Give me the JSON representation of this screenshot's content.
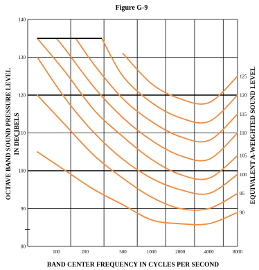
{
  "chart_data": {
    "type": "line",
    "title": "Figure G-9",
    "xlabel": "BAND CENTER FREQUENCY IN CYCLES PER SECOND",
    "ylabel": "OCTAVE BAND SOUND PRESSURE LEVEL IN DECIBELS",
    "y2label": "EQUIVALENT A-WEIGHTED SOUND LEVEL",
    "x_ticks": [
      100,
      200,
      500,
      1000,
      2000,
      4000,
      8000
    ],
    "x_tick_labels": [
      "100",
      "200",
      "500",
      "1000",
      "2000",
      "4000",
      "8000"
    ],
    "x_scale": "log",
    "xlim": [
      50,
      8000
    ],
    "ylim": [
      80,
      140
    ],
    "y_ticks": [
      80,
      90,
      100,
      110,
      120,
      130,
      140
    ],
    "y_tick_labels": [
      "80",
      "90",
      "100",
      "110",
      "120",
      "130",
      "140"
    ],
    "grid": true,
    "cap_level": 135,
    "cap_start": 63,
    "colors": {
      "curve": "#f58a3c",
      "grid": "#000000"
    },
    "series": [
      {
        "name": "90",
        "dba": 90,
        "x": [
          63,
          125,
          250,
          500,
          1000,
          2000,
          4000,
          8000
        ],
        "y": [
          105,
          100,
          95,
          91,
          87,
          86,
          86,
          89
        ]
      },
      {
        "name": "95",
        "dba": 95,
        "x": [
          63,
          125,
          250,
          500,
          1000,
          2000,
          4000,
          8000
        ],
        "y": [
          120,
          112,
          104,
          98,
          93,
          90,
          90,
          94
        ]
      },
      {
        "name": "100",
        "dba": 100,
        "x": [
          63,
          125,
          250,
          500,
          1000,
          2000,
          4000,
          8000
        ],
        "y": [
          130,
          119,
          110,
          103,
          98,
          95,
          94,
          99
        ]
      },
      {
        "name": "105",
        "dba": 105,
        "x": [
          63,
          125,
          250,
          500,
          1000,
          2000,
          4000,
          8000
        ],
        "y": [
          135,
          126,
          116,
          109,
          103,
          99,
          98,
          104
        ]
      },
      {
        "name": "110",
        "dba": 110,
        "x": [
          100,
          125,
          250,
          500,
          1000,
          2000,
          4000,
          8000
        ],
        "y": [
          135,
          132,
          122,
          114,
          108,
          104,
          103,
          110
        ]
      },
      {
        "name": "115",
        "dba": 115,
        "x": [
          160,
          250,
          500,
          1000,
          2000,
          4000,
          8000
        ],
        "y": [
          135,
          128,
          119,
          113,
          109,
          108,
          115
        ]
      },
      {
        "name": "120",
        "dba": 120,
        "x": [
          300,
          500,
          1000,
          2000,
          4000,
          8000
        ],
        "y": [
          135,
          125,
          118,
          114,
          113,
          120
        ]
      },
      {
        "name": "125",
        "dba": 125,
        "x": [
          500,
          1000,
          2000,
          4000,
          8000
        ],
        "y": [
          131,
          123,
          119,
          118,
          125
        ]
      }
    ]
  }
}
